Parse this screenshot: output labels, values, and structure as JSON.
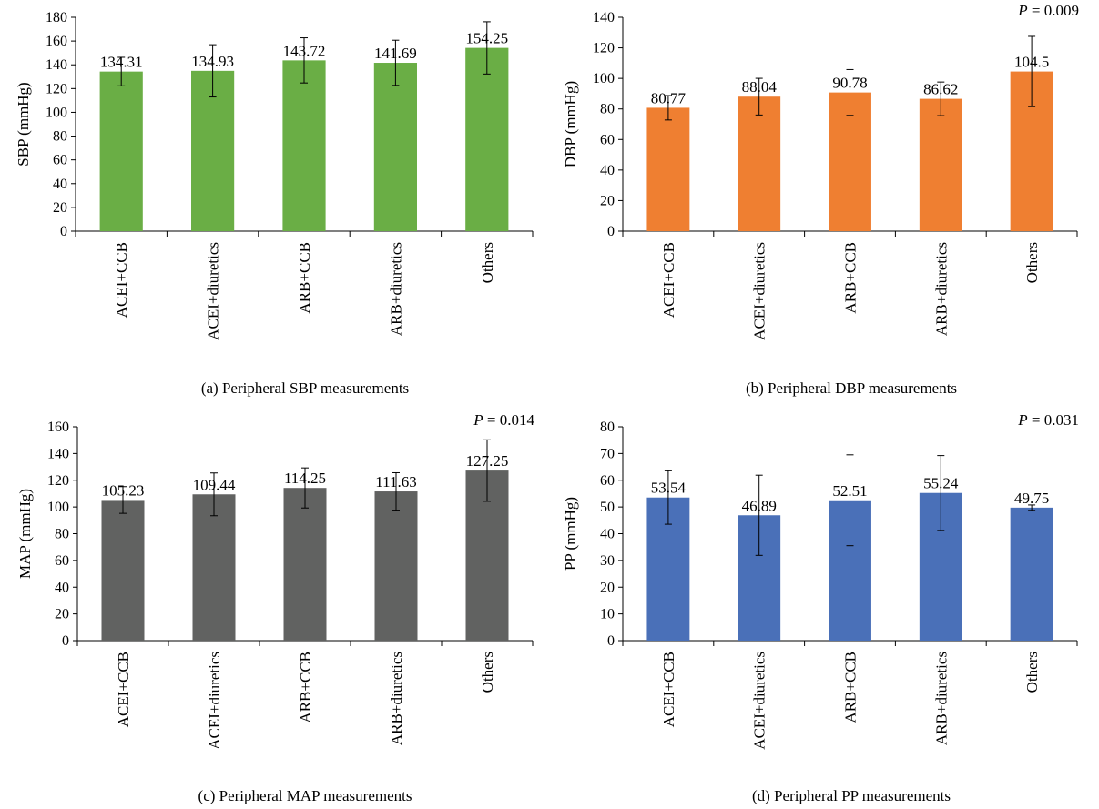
{
  "chart_data": [
    {
      "type": "bar",
      "categories": [
        "ACEI+CCB",
        "ACEI+diuretics",
        "ARB+CCB",
        "ARB+diuretics",
        "Others"
      ],
      "values": [
        134.31,
        134.93,
        143.72,
        141.69,
        154.25
      ],
      "value_labels": [
        "134.31",
        "134.93",
        "143.72",
        "141.69",
        "154.25"
      ],
      "error": [
        12,
        22,
        19,
        19,
        22
      ],
      "ylabel": "SBP (mmHg)",
      "ylim": [
        0,
        180
      ],
      "yticks": [
        0,
        20,
        40,
        60,
        80,
        100,
        120,
        140,
        160,
        180
      ],
      "p_label": "",
      "caption": "(a) Peripheral SBP measurements",
      "color": "#6aae45"
    },
    {
      "type": "bar",
      "categories": [
        "ACEI+CCB",
        "ACEI+diuretics",
        "ARB+CCB",
        "ARB+diuretics",
        "Others"
      ],
      "values": [
        80.77,
        88.04,
        90.78,
        86.62,
        104.5
      ],
      "value_labels": [
        "80.77",
        "88.04",
        "90.78",
        "86.62",
        "104.5"
      ],
      "error": [
        8,
        12,
        15,
        11,
        23
      ],
      "ylabel": "DBP (mmHg)",
      "ylim": [
        0,
        140
      ],
      "yticks": [
        0,
        20,
        40,
        60,
        80,
        100,
        120,
        140
      ],
      "p_label": "P = 0.009",
      "caption": "(b) Peripheral DBP measurements",
      "color": "#ef7f31"
    },
    {
      "type": "bar",
      "categories": [
        "ACEI+CCB",
        "ACEI+diuretics",
        "ARB+CCB",
        "ARB+diuretics",
        "Others"
      ],
      "values": [
        105.23,
        109.44,
        114.25,
        111.63,
        127.25
      ],
      "value_labels": [
        "105.23",
        "109.44",
        "114.25",
        "111.63",
        "127.25"
      ],
      "error": [
        10,
        16,
        15,
        14,
        23
      ],
      "ylabel": "MAP (mmHg)",
      "ylim": [
        0,
        160
      ],
      "yticks": [
        0,
        20,
        40,
        60,
        80,
        100,
        120,
        140,
        160
      ],
      "p_label": "P = 0.014",
      "caption": "(c) Peripheral MAP measurements",
      "color": "#616261"
    },
    {
      "type": "bar",
      "categories": [
        "ACEI+CCB",
        "ACEI+diuretics",
        "ARB+CCB",
        "ARB+diuretics",
        "Others"
      ],
      "values": [
        53.54,
        46.89,
        52.51,
        55.24,
        49.75
      ],
      "value_labels": [
        "53.54",
        "46.89",
        "52.51",
        "55.24",
        "49.75"
      ],
      "error": [
        10,
        15,
        17,
        14,
        1
      ],
      "ylabel": "PP (mmHg)",
      "ylim": [
        0,
        80
      ],
      "yticks": [
        0,
        10,
        20,
        30,
        40,
        50,
        60,
        70,
        80
      ],
      "p_label": "P = 0.031",
      "caption": "(d) Peripheral PP measurements",
      "color": "#4a70b8"
    }
  ]
}
